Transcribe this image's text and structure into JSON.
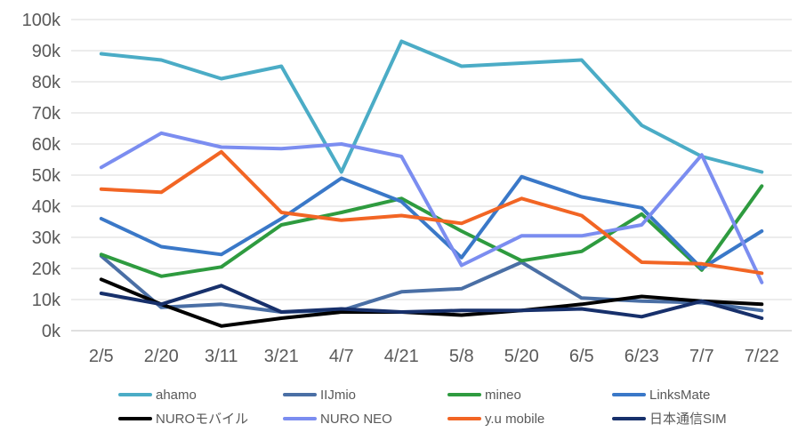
{
  "chart_data": {
    "type": "line",
    "categories": [
      "2/5",
      "2/20",
      "3/11",
      "3/21",
      "4/7",
      "4/21",
      "5/8",
      "5/20",
      "6/5",
      "6/23",
      "7/7",
      "7/22"
    ],
    "ylim": [
      0,
      100000
    ],
    "y_ticks": [
      "0k",
      "10k",
      "20k",
      "30k",
      "40k",
      "50k",
      "60k",
      "70k",
      "80k",
      "90k",
      "100k"
    ],
    "grid": true,
    "legend_position": "bottom",
    "series": [
      {
        "name": "ahamo",
        "color": "#4bacc6",
        "values": [
          89000,
          87000,
          81000,
          85000,
          51000,
          93000,
          85000,
          86000,
          87000,
          66000,
          56000,
          51000
        ]
      },
      {
        "name": "IIJmio",
        "color": "#4a6fa5",
        "values": [
          24000,
          7500,
          8500,
          6000,
          6500,
          12500,
          13500,
          22000,
          10500,
          9500,
          9000,
          6500
        ]
      },
      {
        "name": "mineo",
        "color": "#2e9b3f",
        "values": [
          24500,
          17500,
          20500,
          34000,
          38000,
          42500,
          32000,
          22500,
          25500,
          37500,
          19500,
          46500
        ]
      },
      {
        "name": "LinksMate",
        "color": "#3a78c8",
        "values": [
          36000,
          27000,
          24500,
          36000,
          49000,
          41500,
          23500,
          49500,
          43000,
          39500,
          20000,
          32000
        ]
      },
      {
        "name": "NUROモバイル",
        "color": "#000000",
        "values": [
          16500,
          8500,
          1500,
          4000,
          6000,
          6000,
          5000,
          6500,
          8500,
          11000,
          9500,
          8500
        ]
      },
      {
        "name": "NURO NEO",
        "color": "#7b8df0",
        "values": [
          52500,
          63500,
          59000,
          58500,
          60000,
          56000,
          21000,
          30500,
          30500,
          34000,
          56500,
          15500
        ]
      },
      {
        "name": "y.u mobile",
        "color": "#f26524",
        "values": [
          45500,
          44500,
          57500,
          38000,
          35500,
          37000,
          34500,
          42500,
          37000,
          22000,
          21500,
          18500
        ]
      },
      {
        "name": "日本通信SIM",
        "color": "#17306b",
        "values": [
          12000,
          8500,
          14500,
          6000,
          7000,
          6000,
          6500,
          6500,
          7000,
          4500,
          9500,
          4000
        ]
      }
    ]
  }
}
